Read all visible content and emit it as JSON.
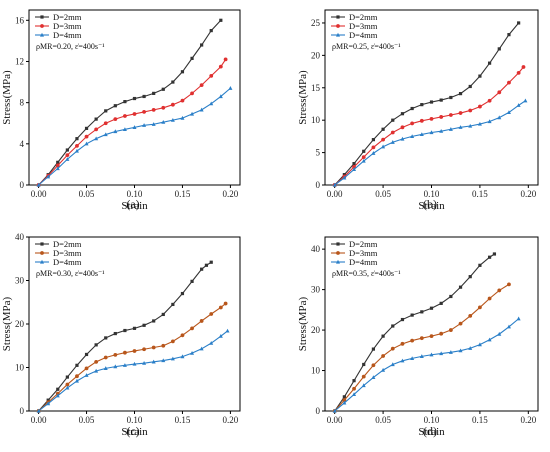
{
  "chart_data": [
    {
      "type": "line",
      "panel_label": "(a)",
      "xlabel": "Strain",
      "ylabel": "Stress(MPa)",
      "xlim": [
        -0.01,
        0.21
      ],
      "ylim": [
        0,
        17
      ],
      "xticks": [
        "0.00",
        "0.05",
        "0.10",
        "0.15",
        "0.20"
      ],
      "xtick_values": [
        0,
        0.05,
        0.1,
        0.15,
        0.2
      ],
      "yticks": [
        "0",
        "4",
        "8",
        "12",
        "16"
      ],
      "ytick_values": [
        0,
        4,
        8,
        12,
        16
      ],
      "legend_position": "top-left",
      "annotation": "ρMR=0.20, ε̇=400s⁻¹",
      "series": [
        {
          "name": "D=2mm",
          "color": "#333333",
          "marker": "square",
          "x": [
            0,
            0.01,
            0.02,
            0.03,
            0.04,
            0.05,
            0.06,
            0.07,
            0.08,
            0.09,
            0.1,
            0.11,
            0.12,
            0.13,
            0.14,
            0.15,
            0.16,
            0.17,
            0.18,
            0.19
          ],
          "y": [
            0,
            1.0,
            2.2,
            3.4,
            4.5,
            5.5,
            6.4,
            7.2,
            7.7,
            8.1,
            8.4,
            8.6,
            8.9,
            9.3,
            10.0,
            11.0,
            12.3,
            13.6,
            15.0,
            16.0
          ]
        },
        {
          "name": "D=3mm",
          "color": "#e03030",
          "marker": "circle",
          "x": [
            0,
            0.01,
            0.02,
            0.03,
            0.04,
            0.05,
            0.06,
            0.07,
            0.08,
            0.09,
            0.1,
            0.11,
            0.12,
            0.13,
            0.14,
            0.15,
            0.16,
            0.17,
            0.18,
            0.19,
            0.195
          ],
          "y": [
            0,
            0.9,
            1.9,
            2.9,
            3.8,
            4.7,
            5.4,
            6.0,
            6.4,
            6.7,
            6.9,
            7.1,
            7.3,
            7.5,
            7.8,
            8.2,
            8.9,
            9.7,
            10.6,
            11.5,
            12.2
          ]
        },
        {
          "name": "D=4mm",
          "color": "#2a7fc8",
          "marker": "triangle",
          "x": [
            0,
            0.01,
            0.02,
            0.03,
            0.04,
            0.05,
            0.06,
            0.07,
            0.08,
            0.09,
            0.1,
            0.11,
            0.12,
            0.13,
            0.14,
            0.15,
            0.16,
            0.17,
            0.18,
            0.19,
            0.2
          ],
          "y": [
            0,
            0.8,
            1.6,
            2.5,
            3.3,
            4.0,
            4.5,
            4.9,
            5.2,
            5.4,
            5.6,
            5.8,
            5.9,
            6.1,
            6.3,
            6.5,
            6.9,
            7.3,
            7.9,
            8.6,
            9.4
          ]
        }
      ]
    },
    {
      "type": "line",
      "panel_label": "(b)",
      "xlabel": "Strain",
      "ylabel": "Stress(MPa)",
      "xlim": [
        -0.01,
        0.21
      ],
      "ylim": [
        0,
        27
      ],
      "xticks": [
        "0.00",
        "0.05",
        "0.10",
        "0.15",
        "0.20"
      ],
      "xtick_values": [
        0,
        0.05,
        0.1,
        0.15,
        0.2
      ],
      "yticks": [
        "0",
        "5",
        "10",
        "15",
        "20",
        "25"
      ],
      "ytick_values": [
        0,
        5,
        10,
        15,
        20,
        25
      ],
      "legend_position": "top-left",
      "annotation": "ρMR=0.25, ε̇=400s⁻¹",
      "series": [
        {
          "name": "D=2mm",
          "color": "#333333",
          "marker": "square",
          "x": [
            0,
            0.01,
            0.02,
            0.03,
            0.04,
            0.05,
            0.06,
            0.07,
            0.08,
            0.09,
            0.1,
            0.11,
            0.12,
            0.13,
            0.14,
            0.15,
            0.16,
            0.17,
            0.18,
            0.19
          ],
          "y": [
            0,
            1.6,
            3.3,
            5.2,
            7.0,
            8.6,
            10.0,
            11.0,
            11.8,
            12.4,
            12.8,
            13.1,
            13.5,
            14.1,
            15.2,
            16.8,
            18.8,
            21.0,
            23.2,
            25.0
          ]
        },
        {
          "name": "D=3mm",
          "color": "#e03030",
          "marker": "circle",
          "x": [
            0,
            0.01,
            0.02,
            0.03,
            0.04,
            0.05,
            0.06,
            0.07,
            0.08,
            0.09,
            0.1,
            0.11,
            0.12,
            0.13,
            0.14,
            0.15,
            0.16,
            0.17,
            0.18,
            0.19,
            0.195
          ],
          "y": [
            0,
            1.3,
            2.8,
            4.3,
            5.8,
            7.0,
            8.1,
            8.9,
            9.5,
            9.9,
            10.2,
            10.5,
            10.8,
            11.1,
            11.5,
            12.1,
            13.0,
            14.3,
            15.8,
            17.3,
            18.2
          ]
        },
        {
          "name": "D=4mm",
          "color": "#2a7fc8",
          "marker": "triangle",
          "x": [
            0,
            0.01,
            0.02,
            0.03,
            0.04,
            0.05,
            0.06,
            0.07,
            0.08,
            0.09,
            0.1,
            0.11,
            0.12,
            0.13,
            0.14,
            0.15,
            0.16,
            0.17,
            0.18,
            0.19,
            0.197
          ],
          "y": [
            0,
            1.1,
            2.4,
            3.7,
            4.9,
            5.9,
            6.6,
            7.1,
            7.5,
            7.8,
            8.1,
            8.3,
            8.6,
            8.9,
            9.1,
            9.4,
            9.8,
            10.4,
            11.2,
            12.3,
            13.0
          ]
        }
      ]
    },
    {
      "type": "line",
      "panel_label": "(c)",
      "xlabel": "Strain",
      "ylabel": "Stress(MPa)",
      "xlim": [
        -0.01,
        0.21
      ],
      "ylim": [
        0,
        40
      ],
      "xticks": [
        "0.00",
        "0.05",
        "0.10",
        "0.15",
        "0.20"
      ],
      "xtick_values": [
        0,
        0.05,
        0.1,
        0.15,
        0.2
      ],
      "yticks": [
        "0",
        "10",
        "20",
        "30",
        "40"
      ],
      "ytick_values": [
        0,
        10,
        20,
        30,
        40
      ],
      "legend_position": "top-left",
      "annotation": "ρMR=0.30, ε̇=400s⁻¹",
      "series": [
        {
          "name": "D=2mm",
          "color": "#333333",
          "marker": "square",
          "x": [
            0,
            0.01,
            0.02,
            0.03,
            0.04,
            0.05,
            0.06,
            0.07,
            0.08,
            0.09,
            0.1,
            0.11,
            0.12,
            0.13,
            0.14,
            0.15,
            0.16,
            0.17,
            0.175,
            0.18
          ],
          "y": [
            0,
            2.5,
            5.0,
            7.8,
            10.5,
            13.0,
            15.2,
            16.8,
            17.8,
            18.5,
            19.0,
            19.7,
            20.7,
            22.2,
            24.5,
            27.0,
            29.8,
            32.6,
            33.5,
            34.2
          ]
        },
        {
          "name": "D=3mm",
          "color": "#b8561b",
          "marker": "circle",
          "x": [
            0,
            0.01,
            0.02,
            0.03,
            0.04,
            0.05,
            0.06,
            0.07,
            0.08,
            0.09,
            0.1,
            0.11,
            0.12,
            0.13,
            0.14,
            0.15,
            0.16,
            0.17,
            0.18,
            0.19,
            0.195
          ],
          "y": [
            0,
            2.0,
            4.0,
            6.1,
            8.0,
            9.8,
            11.3,
            12.3,
            12.9,
            13.4,
            13.8,
            14.2,
            14.6,
            15.0,
            16.0,
            17.4,
            19.0,
            20.7,
            22.3,
            23.8,
            24.7
          ]
        },
        {
          "name": "D=4mm",
          "color": "#2a7fc8",
          "marker": "triangle",
          "x": [
            0,
            0.01,
            0.02,
            0.03,
            0.04,
            0.05,
            0.06,
            0.07,
            0.08,
            0.09,
            0.1,
            0.11,
            0.12,
            0.13,
            0.14,
            0.15,
            0.16,
            0.17,
            0.18,
            0.19,
            0.197
          ],
          "y": [
            0,
            1.7,
            3.5,
            5.3,
            6.9,
            8.2,
            9.2,
            9.8,
            10.2,
            10.5,
            10.8,
            11.0,
            11.3,
            11.6,
            12.0,
            12.5,
            13.3,
            14.3,
            15.6,
            17.2,
            18.4
          ]
        }
      ]
    },
    {
      "type": "line",
      "panel_label": "(d)",
      "xlabel": "Strain",
      "ylabel": "Stress(MPa)",
      "xlim": [
        -0.01,
        0.21
      ],
      "ylim": [
        0,
        43
      ],
      "xticks": [
        "0.00",
        "0.05",
        "0.10",
        "0.15",
        "0.20"
      ],
      "xtick_values": [
        0,
        0.05,
        0.1,
        0.15,
        0.2
      ],
      "yticks": [
        "0",
        "10",
        "20",
        "30",
        "40"
      ],
      "ytick_values": [
        0,
        10,
        20,
        30,
        40
      ],
      "legend_position": "top-left",
      "annotation": "ρMR=0.35, ε̇=400s⁻¹",
      "series": [
        {
          "name": "D=2mm",
          "color": "#333333",
          "marker": "square",
          "x": [
            0,
            0.01,
            0.02,
            0.03,
            0.04,
            0.05,
            0.06,
            0.07,
            0.08,
            0.09,
            0.1,
            0.11,
            0.12,
            0.13,
            0.14,
            0.15,
            0.16,
            0.165
          ],
          "y": [
            0,
            3.5,
            7.5,
            11.5,
            15.3,
            18.5,
            21.0,
            22.6,
            23.7,
            24.5,
            25.4,
            26.6,
            28.3,
            30.6,
            33.2,
            36.0,
            38.0,
            38.8
          ]
        },
        {
          "name": "D=3mm",
          "color": "#b8561b",
          "marker": "circle",
          "x": [
            0,
            0.01,
            0.02,
            0.03,
            0.04,
            0.05,
            0.06,
            0.07,
            0.08,
            0.09,
            0.1,
            0.11,
            0.12,
            0.13,
            0.14,
            0.15,
            0.16,
            0.17,
            0.18
          ],
          "y": [
            0,
            2.7,
            5.5,
            8.5,
            11.3,
            13.6,
            15.4,
            16.6,
            17.4,
            18.0,
            18.5,
            19.1,
            20.0,
            21.6,
            23.5,
            25.6,
            27.8,
            29.8,
            31.3
          ]
        },
        {
          "name": "D=4mm",
          "color": "#2a7fc8",
          "marker": "triangle",
          "x": [
            0,
            0.01,
            0.02,
            0.03,
            0.04,
            0.05,
            0.06,
            0.07,
            0.08,
            0.09,
            0.1,
            0.11,
            0.12,
            0.13,
            0.14,
            0.15,
            0.16,
            0.17,
            0.18,
            0.19
          ],
          "y": [
            0,
            2.0,
            4.1,
            6.3,
            8.3,
            10.1,
            11.5,
            12.4,
            13.0,
            13.5,
            13.9,
            14.2,
            14.5,
            14.9,
            15.5,
            16.4,
            17.6,
            19.0,
            20.8,
            22.8
          ]
        }
      ]
    }
  ]
}
